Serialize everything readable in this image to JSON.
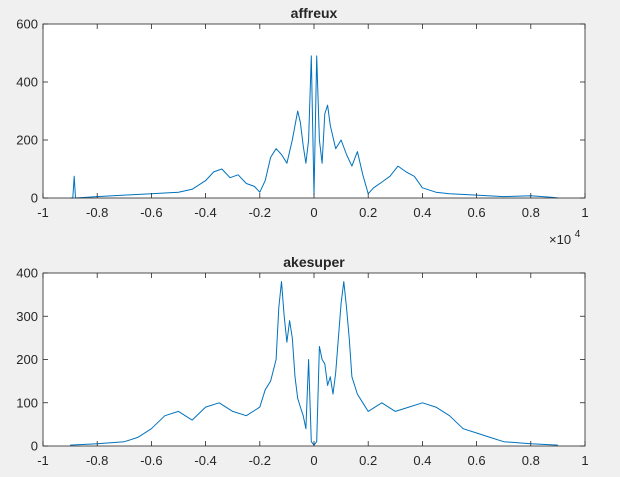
{
  "figure": {
    "background": "#f0f0f0",
    "line_color": "#0072bd"
  },
  "chart_data": [
    {
      "type": "line",
      "title": "affreux",
      "xlabel": "",
      "ylabel": "",
      "xlim": [
        -1,
        1
      ],
      "ylim": [
        0,
        600
      ],
      "x_ticks": [
        -1,
        -0.8,
        -0.6,
        -0.4,
        -0.2,
        0,
        0.2,
        0.4,
        0.6,
        0.8,
        1
      ],
      "x_tick_labels": [
        "-1",
        "-0.8",
        "-0.6",
        "-0.4",
        "-0.2",
        "0",
        "0.2",
        "0.4",
        "0.6",
        "0.8",
        "1"
      ],
      "y_ticks": [
        0,
        200,
        400,
        600
      ],
      "y_tick_labels": [
        "0",
        "200",
        "400",
        "600"
      ],
      "x_exponent": {
        "base": "×10",
        "power": "4"
      },
      "grid": false,
      "series": [
        {
          "color": "#0072bd",
          "x": [
            -0.9,
            -0.89,
            -0.885,
            -0.88,
            -0.8,
            -0.7,
            -0.6,
            -0.5,
            -0.45,
            -0.4,
            -0.37,
            -0.34,
            -0.31,
            -0.28,
            -0.25,
            -0.22,
            -0.2,
            -0.18,
            -0.16,
            -0.14,
            -0.12,
            -0.1,
            -0.08,
            -0.06,
            -0.05,
            -0.04,
            -0.03,
            -0.02,
            -0.01,
            0,
            0.01,
            0.02,
            0.03,
            0.04,
            0.05,
            0.06,
            0.08,
            0.1,
            0.12,
            0.14,
            0.16,
            0.18,
            0.2,
            0.22,
            0.25,
            0.28,
            0.31,
            0.34,
            0.37,
            0.4,
            0.45,
            0.5,
            0.6,
            0.7,
            0.8,
            0.88,
            0.9
          ],
          "y": [
            0,
            0,
            75,
            0,
            5,
            10,
            15,
            20,
            30,
            60,
            90,
            100,
            70,
            80,
            50,
            40,
            20,
            60,
            140,
            170,
            150,
            120,
            200,
            300,
            260,
            180,
            120,
            200,
            490,
            10,
            490,
            200,
            120,
            290,
            320,
            250,
            170,
            200,
            150,
            110,
            160,
            80,
            15,
            35,
            55,
            75,
            110,
            90,
            75,
            35,
            20,
            15,
            10,
            5,
            8,
            2,
            0
          ]
        }
      ]
    },
    {
      "type": "line",
      "title": "akesuper",
      "xlabel": "",
      "ylabel": "",
      "xlim": [
        -1,
        1
      ],
      "ylim": [
        0,
        400
      ],
      "x_ticks": [
        -1,
        -0.8,
        -0.6,
        -0.4,
        -0.2,
        0,
        0.2,
        0.4,
        0.6,
        0.8,
        1
      ],
      "x_tick_labels": [
        "-1",
        "-0.8",
        "-0.6",
        "-0.4",
        "-0.2",
        "0",
        "0.2",
        "0.4",
        "0.6",
        "0.8",
        "1"
      ],
      "y_ticks": [
        0,
        100,
        200,
        300,
        400
      ],
      "y_tick_labels": [
        "0",
        "100",
        "200",
        "300",
        "400"
      ],
      "grid": false,
      "series": [
        {
          "color": "#0072bd",
          "x": [
            -0.9,
            -0.8,
            -0.7,
            -0.65,
            -0.6,
            -0.55,
            -0.5,
            -0.45,
            -0.4,
            -0.35,
            -0.3,
            -0.25,
            -0.2,
            -0.18,
            -0.16,
            -0.14,
            -0.13,
            -0.12,
            -0.11,
            -0.1,
            -0.09,
            -0.08,
            -0.07,
            -0.06,
            -0.05,
            -0.04,
            -0.03,
            -0.02,
            -0.01,
            0,
            0.01,
            0.02,
            0.03,
            0.04,
            0.05,
            0.06,
            0.07,
            0.08,
            0.09,
            0.1,
            0.11,
            0.12,
            0.13,
            0.14,
            0.16,
            0.18,
            0.2,
            0.25,
            0.3,
            0.35,
            0.4,
            0.45,
            0.5,
            0.55,
            0.6,
            0.65,
            0.7,
            0.8,
            0.9
          ],
          "y": [
            2,
            5,
            10,
            20,
            40,
            70,
            80,
            60,
            90,
            100,
            80,
            70,
            90,
            130,
            150,
            200,
            320,
            380,
            300,
            240,
            290,
            250,
            160,
            110,
            90,
            70,
            40,
            200,
            10,
            2,
            10,
            230,
            200,
            190,
            140,
            160,
            120,
            170,
            250,
            330,
            380,
            320,
            250,
            160,
            120,
            100,
            80,
            100,
            80,
            90,
            100,
            90,
            70,
            40,
            30,
            20,
            10,
            5,
            2
          ]
        }
      ]
    }
  ]
}
